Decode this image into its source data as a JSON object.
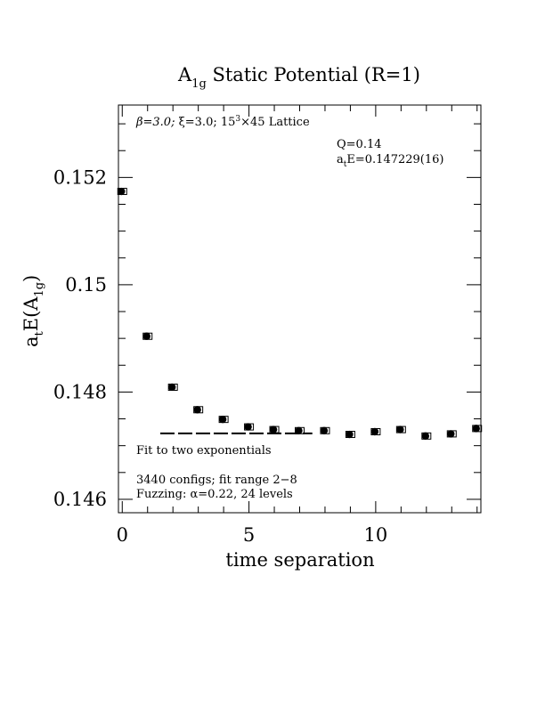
{
  "chart_data": {
    "type": "scatter",
    "title_main": "A",
    "title_sub": "1g",
    "title_rest": " Static Potential (R=1)",
    "xlabel": "time separation",
    "ylabel_main": "a",
    "ylabel_t": "t",
    "ylabel_mid": "E(A",
    "ylabel_sub": "1g",
    "ylabel_end": ")",
    "xlim": [
      -0.15,
      14.15
    ],
    "ylim": [
      0.14575,
      0.15335
    ],
    "xticks": [
      0,
      5,
      10
    ],
    "xtick_labels": [
      "0",
      "5",
      "10"
    ],
    "yticks": [
      0.146,
      0.148,
      0.15,
      0.152
    ],
    "ytick_labels": [
      "0.146",
      "0.148",
      "0.15",
      "0.152"
    ],
    "annotations": {
      "lattice_beta": "β=3.0; ",
      "lattice_xi": "ξ=3.0; 15",
      "lattice_sup": "3",
      "lattice_rest": "×45 Lattice",
      "q_value": "Q=0.14",
      "energy_a": "a",
      "energy_t": "t",
      "energy_rest": "E=0.147229(16)",
      "fit_desc": "Fit to two exponentials",
      "configs": "3440 configs; fit range 2−8",
      "fuzzing": "Fuzzing: α=0.22, 24 levels"
    },
    "points": [
      {
        "x": 0,
        "y": 0.15174
      },
      {
        "x": 1,
        "y": 0.14904
      },
      {
        "x": 2,
        "y": 0.14809
      },
      {
        "x": 3,
        "y": 0.14767
      },
      {
        "x": 4,
        "y": 0.14749
      },
      {
        "x": 5,
        "y": 0.14735
      },
      {
        "x": 6,
        "y": 0.1473
      },
      {
        "x": 7,
        "y": 0.14728
      },
      {
        "x": 8,
        "y": 0.14728
      },
      {
        "x": 9,
        "y": 0.14721
      },
      {
        "x": 10,
        "y": 0.14726
      },
      {
        "x": 11,
        "y": 0.1473
      },
      {
        "x": 12,
        "y": 0.14718
      },
      {
        "x": 13,
        "y": 0.14722
      },
      {
        "x": 14,
        "y": 0.14732
      }
    ],
    "fit_line": {
      "x_start": 1.5,
      "x_end": 7.5,
      "y": 0.147229,
      "style": "dashed"
    }
  }
}
